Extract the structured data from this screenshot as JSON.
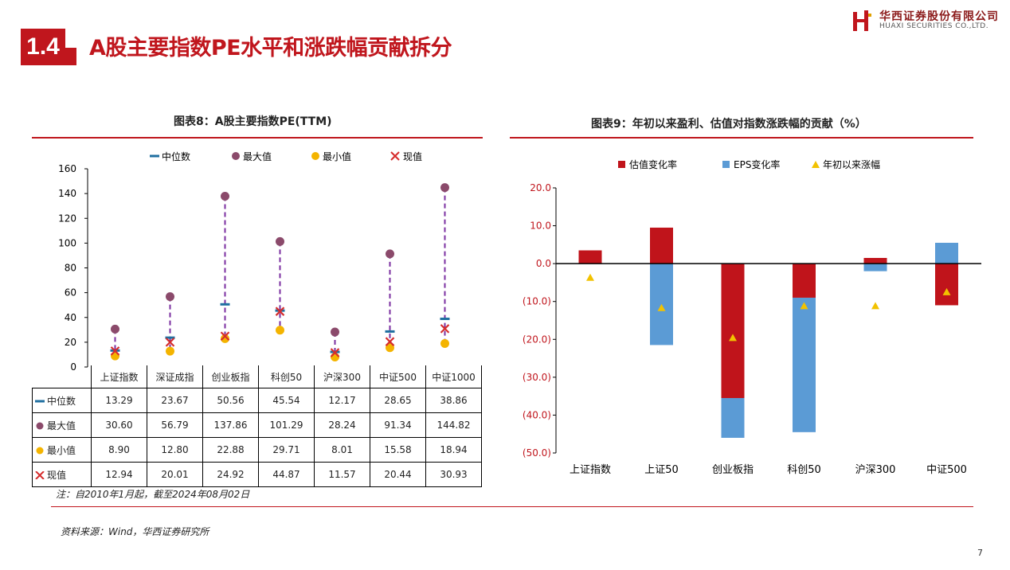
{
  "header": {
    "section_number": "1.4",
    "title": "A股主要指数PE水平和涨跌幅贡献拆分",
    "logo_cn": "华西证券股份有限公司",
    "logo_en": "HUAXI SECURITIES CO.,LTD."
  },
  "chart8": {
    "title": "图表8：A股主要指数PE(TTM)",
    "legend": [
      "中位数",
      "最大值",
      "最小值",
      "现值"
    ],
    "yticks": [
      "160",
      "140",
      "120",
      "100",
      "80",
      "60",
      "40",
      "20",
      "0"
    ],
    "table_rows": [
      {
        "label": "中位数",
        "cells": [
          "13.29",
          "23.67",
          "50.56",
          "45.54",
          "12.17",
          "28.65",
          "38.86"
        ]
      },
      {
        "label": "最大值",
        "cells": [
          "30.60",
          "56.79",
          "137.86",
          "101.29",
          "28.24",
          "91.34",
          "144.82"
        ]
      },
      {
        "label": "最小值",
        "cells": [
          "8.90",
          "12.80",
          "22.88",
          "29.71",
          "8.01",
          "15.58",
          "18.94"
        ]
      },
      {
        "label": "现值",
        "cells": [
          "12.94",
          "20.01",
          "24.92",
          "44.87",
          "11.57",
          "20.44",
          "30.93"
        ]
      }
    ],
    "note": "注：自2010年1月起，截至2024年08月02日"
  },
  "chart9": {
    "title": "图表9：年初以来盈利、估值对指数涨跌幅的贡献（%）",
    "legend": [
      "估值变化率",
      "EPS变化率",
      "年初以来涨幅"
    ],
    "yticks": [
      "20.0",
      "10.0",
      "0.0",
      "(10.0)",
      "(20.0)",
      "(30.0)",
      "(40.0)",
      "(50.0)"
    ]
  },
  "source": "资料来源：Wind，华西证券研究所",
  "page_number": "7",
  "colors": {
    "brand_red": "#c0161d",
    "median": "#1f6fa0",
    "max": "#8b4a6b",
    "min": "#f4b400",
    "current": "#d62d2d",
    "valuation": "#c0141b",
    "eps": "#5b9bd5",
    "ytd": "#f2c200",
    "range_line": "#7b2fa0"
  },
  "chart_data": [
    {
      "type": "scatter",
      "title": "图表8：A股主要指数PE(TTM)",
      "categories": [
        "上证指数",
        "深证成指",
        "创业板指",
        "科创50",
        "沪深300",
        "中证500",
        "中证1000"
      ],
      "series": [
        {
          "name": "中位数",
          "values": [
            13.29,
            23.67,
            50.56,
            45.54,
            12.17,
            28.65,
            38.86
          ]
        },
        {
          "name": "最大值",
          "values": [
            30.6,
            56.79,
            137.86,
            101.29,
            28.24,
            91.34,
            144.82
          ]
        },
        {
          "name": "最小值",
          "values": [
            8.9,
            12.8,
            22.88,
            29.71,
            8.01,
            15.58,
            18.94
          ]
        },
        {
          "name": "现值",
          "values": [
            12.94,
            20.01,
            24.92,
            44.87,
            11.57,
            20.44,
            30.93
          ]
        }
      ],
      "ylim": [
        0,
        160
      ]
    },
    {
      "type": "bar",
      "title": "图表9：年初以来盈利、估值对指数涨跌幅的贡献（%）",
      "categories": [
        "上证指数",
        "上证50",
        "创业板指",
        "科创50",
        "沪深300",
        "中证500"
      ],
      "series": [
        {
          "name": "估值变化率",
          "values": [
            3.5,
            9.5,
            -35.5,
            -9.0,
            1.5,
            -11.0
          ]
        },
        {
          "name": "EPS变化率",
          "values": [
            1.2,
            -21.5,
            -10.5,
            -35.5,
            -2.0,
            5.5
          ]
        },
        {
          "name": "年初以来涨幅",
          "values": [
            -3.7,
            -11.7,
            -19.6,
            -11.2,
            -11.2,
            -7.5
          ]
        }
      ],
      "ylim": [
        -50,
        20
      ]
    }
  ]
}
